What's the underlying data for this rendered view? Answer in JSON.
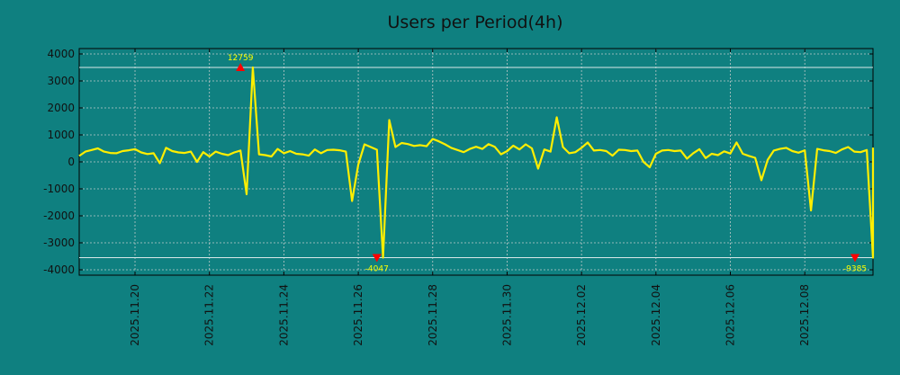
{
  "chart_data": {
    "type": "line",
    "title": "Users per Period(4h)",
    "xlabel": "",
    "ylabel": "",
    "ylim": [
      -4200,
      4200
    ],
    "yticks": [
      4000,
      3000,
      2000,
      1000,
      0,
      -1000,
      -2000,
      -3000,
      -4000
    ],
    "ytick_labels": [
      "4000",
      "3000",
      "2000",
      "1000",
      "0",
      "-1000",
      "-2000",
      "-3000",
      "-4000"
    ],
    "xlim": [
      "2025.11.18 12:00",
      "2025.12.09 20:00"
    ],
    "xticks": [
      "2025.11.20",
      "2025.11.22",
      "2025.11.24",
      "2025.11.26",
      "2025.11.28",
      "2025.11.30",
      "2025.12.02",
      "2025.12.04",
      "2025.12.06",
      "2025.12.08"
    ],
    "clip_lines": [
      3500,
      -3550
    ],
    "grid": true,
    "line_color": "#ffee00",
    "marker_color": "#ff0000",
    "peak_label_color": "#ffff00",
    "series": [
      {
        "x": [
          "2025.11.18 12:00",
          "2025.11.18 16:00",
          "2025.11.18 20:00",
          "2025.11.19 00:00",
          "2025.11.19 04:00",
          "2025.11.19 08:00",
          "2025.11.19 12:00",
          "2025.11.19 16:00",
          "2025.11.19 20:00",
          "2025.11.20 00:00",
          "2025.11.20 04:00",
          "2025.11.20 08:00",
          "2025.11.20 12:00",
          "2025.11.20 16:00",
          "2025.11.20 20:00",
          "2025.11.21 00:00",
          "2025.11.21 04:00",
          "2025.11.21 08:00",
          "2025.11.21 12:00",
          "2025.11.21 16:00",
          "2025.11.21 20:00",
          "2025.11.22 00:00",
          "2025.11.22 04:00",
          "2025.11.22 08:00",
          "2025.11.22 12:00",
          "2025.11.22 16:00",
          "2025.11.22 20:00",
          "2025.11.23 00:00",
          "2025.11.23 04:00",
          "2025.11.23 08:00",
          "2025.11.23 12:00",
          "2025.11.23 16:00",
          "2025.11.23 20:00",
          "2025.11.24 00:00",
          "2025.11.24 04:00",
          "2025.11.24 08:00",
          "2025.11.24 12:00",
          "2025.11.24 16:00",
          "2025.11.24 20:00",
          "2025.11.25 00:00",
          "2025.11.25 04:00",
          "2025.11.25 08:00",
          "2025.11.25 12:00",
          "2025.11.25 16:00",
          "2025.11.25 20:00",
          "2025.11.26 00:00",
          "2025.11.26 04:00",
          "2025.11.26 08:00",
          "2025.11.26 12:00",
          "2025.11.26 16:00",
          "2025.11.26 20:00",
          "2025.11.27 00:00",
          "2025.11.27 04:00",
          "2025.11.27 08:00",
          "2025.11.27 12:00",
          "2025.11.27 16:00",
          "2025.11.27 20:00",
          "2025.11.28 00:00",
          "2025.11.28 04:00",
          "2025.11.28 08:00",
          "2025.11.28 12:00",
          "2025.11.28 16:00",
          "2025.11.28 20:00",
          "2025.11.29 00:00",
          "2025.11.29 04:00",
          "2025.11.29 08:00",
          "2025.11.29 12:00",
          "2025.11.29 16:00",
          "2025.11.29 20:00",
          "2025.11.30 00:00",
          "2025.11.30 04:00",
          "2025.11.30 08:00",
          "2025.11.30 12:00",
          "2025.11.30 16:00",
          "2025.11.30 20:00",
          "2025.12.01 00:00",
          "2025.12.01 04:00",
          "2025.12.01 08:00",
          "2025.12.01 12:00",
          "2025.12.01 16:00",
          "2025.12.01 20:00",
          "2025.12.02 00:00",
          "2025.12.02 04:00",
          "2025.12.02 08:00",
          "2025.12.02 12:00",
          "2025.12.02 16:00",
          "2025.12.02 20:00",
          "2025.12.03 00:00",
          "2025.12.03 04:00",
          "2025.12.03 08:00",
          "2025.12.03 12:00",
          "2025.12.03 16:00",
          "2025.12.03 20:00",
          "2025.12.04 00:00",
          "2025.12.04 04:00",
          "2025.12.04 08:00",
          "2025.12.04 12:00",
          "2025.12.04 16:00",
          "2025.12.04 20:00",
          "2025.12.05 00:00",
          "2025.12.05 04:00",
          "2025.12.05 08:00",
          "2025.12.05 12:00",
          "2025.12.05 16:00",
          "2025.12.05 20:00",
          "2025.12.06 00:00",
          "2025.12.06 04:00",
          "2025.12.06 08:00",
          "2025.12.06 12:00",
          "2025.12.06 16:00",
          "2025.12.06 20:00",
          "2025.12.07 00:00",
          "2025.12.07 04:00",
          "2025.12.07 08:00",
          "2025.12.07 12:00",
          "2025.12.07 16:00",
          "2025.12.07 20:00",
          "2025.12.08 00:00",
          "2025.12.08 04:00",
          "2025.12.08 08:00",
          "2025.12.08 12:00",
          "2025.12.08 16:00",
          "2025.12.08 20:00",
          "2025.12.09 00:00",
          "2025.12.09 04:00",
          "2025.12.09 08:00",
          "2025.12.09 12:00",
          "2025.12.09 16:00",
          "2025.12.09 20:00"
        ],
        "y": [
          220,
          380,
          440,
          500,
          380,
          330,
          320,
          400,
          430,
          470,
          350,
          290,
          320,
          -50,
          520,
          400,
          350,
          330,
          380,
          0,
          360,
          200,
          380,
          300,
          250,
          350,
          420,
          -1200,
          3500,
          280,
          250,
          200,
          480,
          320,
          400,
          300,
          280,
          230,
          460,
          320,
          440,
          450,
          430,
          380,
          -1450,
          -100,
          650,
          550,
          450,
          -3550,
          1550,
          550,
          700,
          660,
          590,
          620,
          580,
          850,
          760,
          650,
          520,
          440,
          360,
          480,
          560,
          480,
          660,
          560,
          280,
          400,
          600,
          460,
          650,
          500,
          -250,
          460,
          380,
          1650,
          550,
          320,
          360,
          520,
          720,
          420,
          440,
          400,
          230,
          450,
          440,
          400,
          420,
          0,
          -200,
          300,
          420,
          440,
          400,
          420,
          120,
          320,
          470,
          140,
          300,
          250,
          390,
          310,
          720,
          300,
          220,
          150,
          -680,
          70,
          420,
          480,
          520,
          400,
          340,
          430,
          -1800,
          480,
          430,
          400,
          330,
          460,
          550,
          380,
          360,
          440,
          -3550
        ]
      }
    ],
    "tail": [
      260,
      500,
      530
    ],
    "annotations": [
      {
        "text": "12759",
        "x": "2025.11.22 20:00",
        "y": 3500,
        "marker": "up"
      },
      {
        "text": "-4047",
        "x": "2025.11.26 12:00",
        "y": -3550,
        "marker": "down"
      },
      {
        "text": "-9385",
        "x": "2025.12.09 20:00",
        "y": -3550,
        "marker": "down"
      }
    ]
  }
}
